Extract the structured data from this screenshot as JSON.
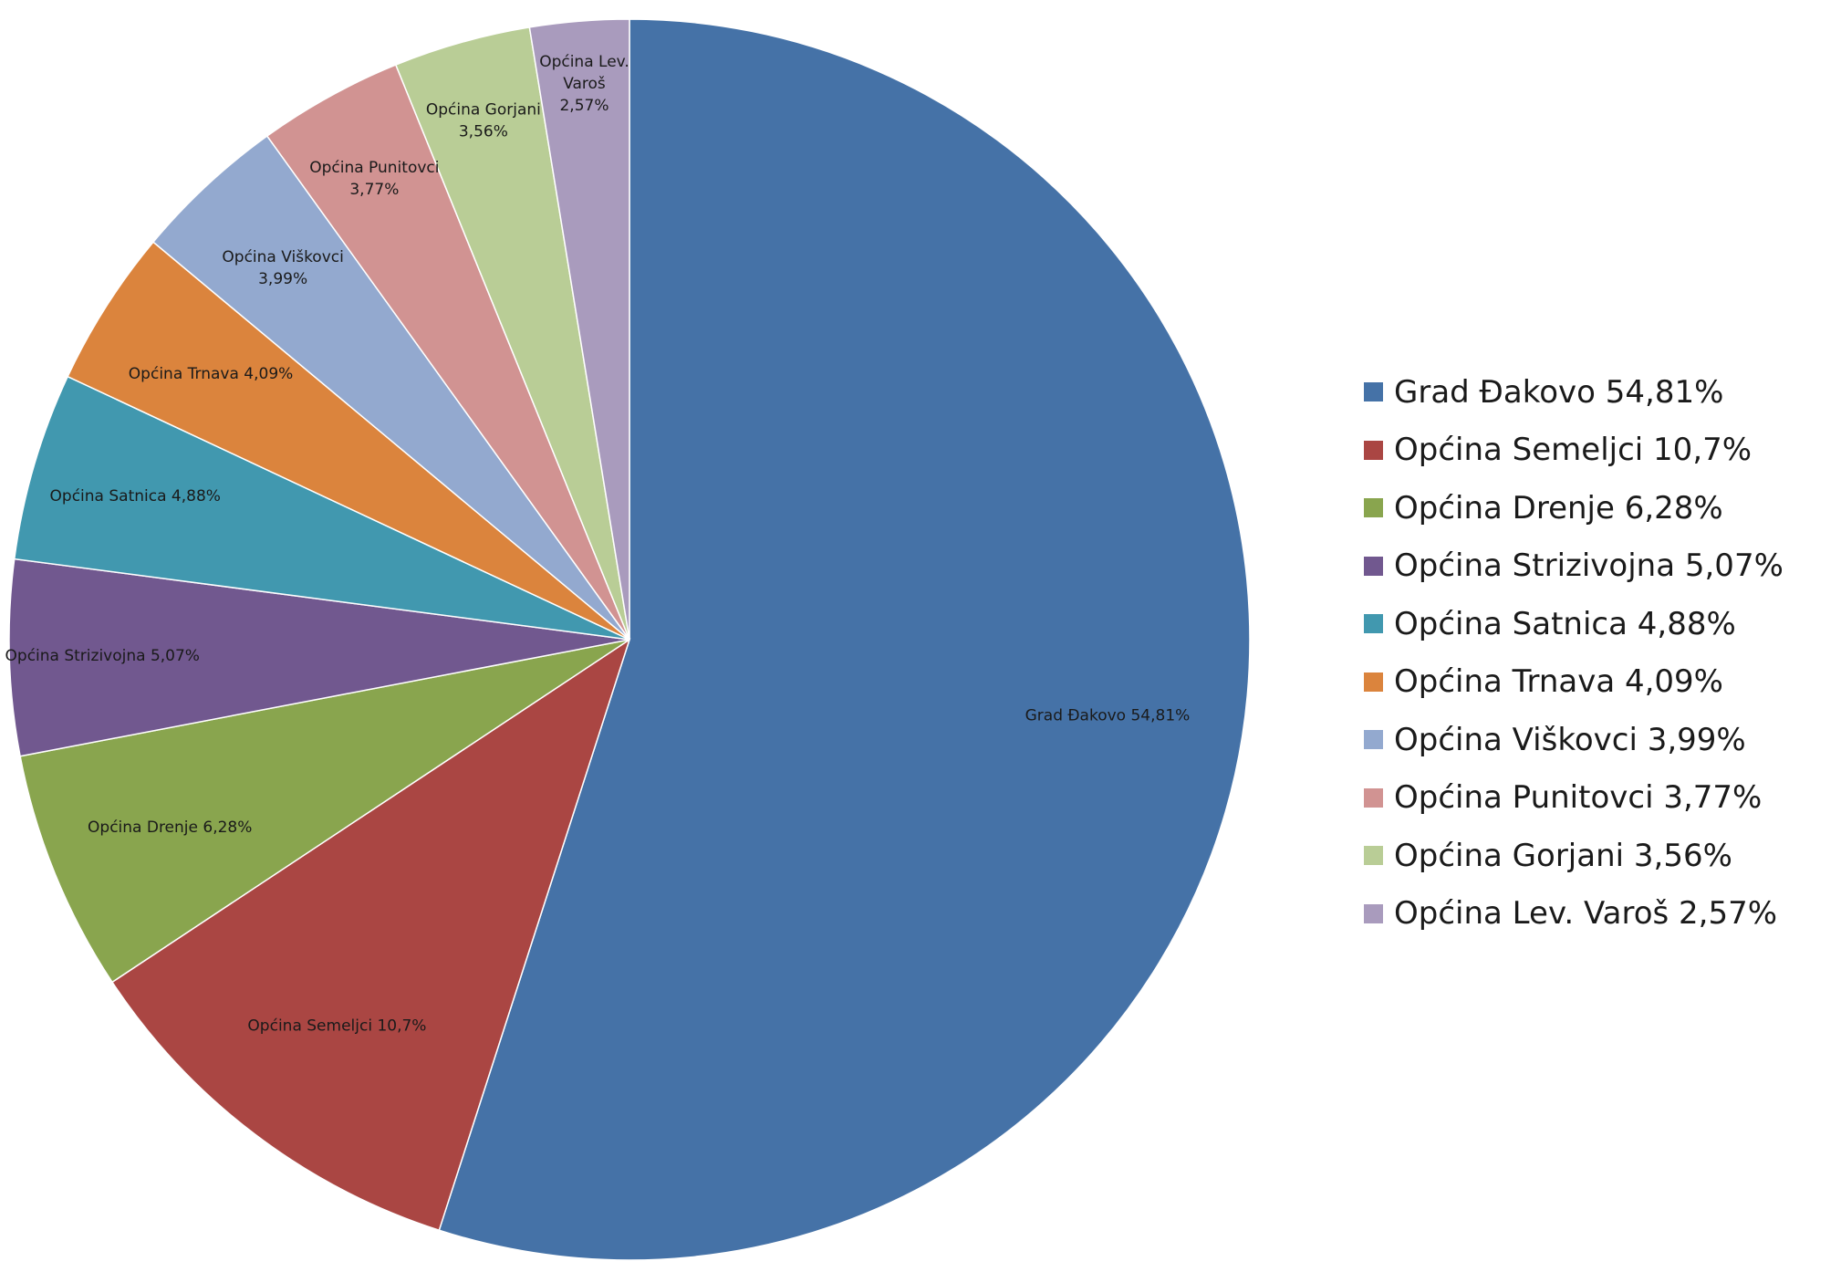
{
  "chart_data": {
    "type": "pie",
    "series": [
      {
        "values": [
          54.81,
          10.7,
          6.28,
          5.07,
          4.88,
          4.09,
          3.99,
          3.77,
          3.56,
          2.57
        ],
        "categories": [
          "Grad Đakovo",
          "Općina Semeljci",
          "Općina Drenje",
          "Općina Strizivojna",
          "Općina Satnica",
          "Općina Trnava",
          "Općina Viškovci",
          "Općina Punitovci",
          "Općina Gorjani",
          "Općina Lev. Varoš"
        ]
      }
    ],
    "slices": [
      {
        "label": "Grad Đakovo",
        "value": 54.81,
        "color": "#4572A7",
        "slice_label_lines": [
          "Grad Đakovo 54,81%"
        ],
        "legend_label": "Grad Đakovo 54,81%"
      },
      {
        "label": "Općina Semeljci",
        "value": 10.7,
        "color": "#AA4643",
        "slice_label_lines": [
          "Općina Semeljci 10,7%"
        ],
        "legend_label": "Općina Semeljci 10,7%"
      },
      {
        "label": "Općina Drenje",
        "value": 6.28,
        "color": "#89A54E",
        "slice_label_lines": [
          "Općina Drenje 6,28%"
        ],
        "legend_label": "Općina Drenje 6,28%"
      },
      {
        "label": "Općina Strizivojna",
        "value": 5.07,
        "color": "#71588F",
        "slice_label_lines": [
          "Općina Strizivojna 5,07%"
        ],
        "legend_label": "Općina Strizivojna 5,07%"
      },
      {
        "label": "Općina Satnica",
        "value": 4.88,
        "color": "#4198AF",
        "slice_label_lines": [
          "Općina Satnica 4,88%"
        ],
        "legend_label": "Općina Satnica 4,88%"
      },
      {
        "label": "Općina Trnava",
        "value": 4.09,
        "color": "#DB843D",
        "slice_label_lines": [
          "Općina Trnava 4,09%"
        ],
        "legend_label": "Općina Trnava 4,09%"
      },
      {
        "label": "Općina Viškovci",
        "value": 3.99,
        "color": "#93A9CF",
        "slice_label_lines": [
          "Općina Viškovci",
          "3,99%"
        ],
        "legend_label": "Općina Viškovci 3,99%"
      },
      {
        "label": "Općina Punitovci",
        "value": 3.77,
        "color": "#D19392",
        "slice_label_lines": [
          "Općina Punitovci",
          "3,77%"
        ],
        "legend_label": "Općina Punitovci 3,77%"
      },
      {
        "label": "Općina Gorjani",
        "value": 3.56,
        "color": "#B9CD96",
        "slice_label_lines": [
          "Općina Gorjani",
          "3,56%"
        ],
        "legend_label": "Općina Gorjani 3,56%"
      },
      {
        "label": "Općina Lev. Varoš",
        "value": 2.57,
        "color": "#A99BBD",
        "slice_label_lines": [
          "Općina Lev.",
          "Varoš",
          "2,57%"
        ],
        "legend_label": "Općina Lev. Varoš 2,57%"
      }
    ],
    "start_angle_deg": 0,
    "direction": "clockwise",
    "legend_position": "right"
  }
}
